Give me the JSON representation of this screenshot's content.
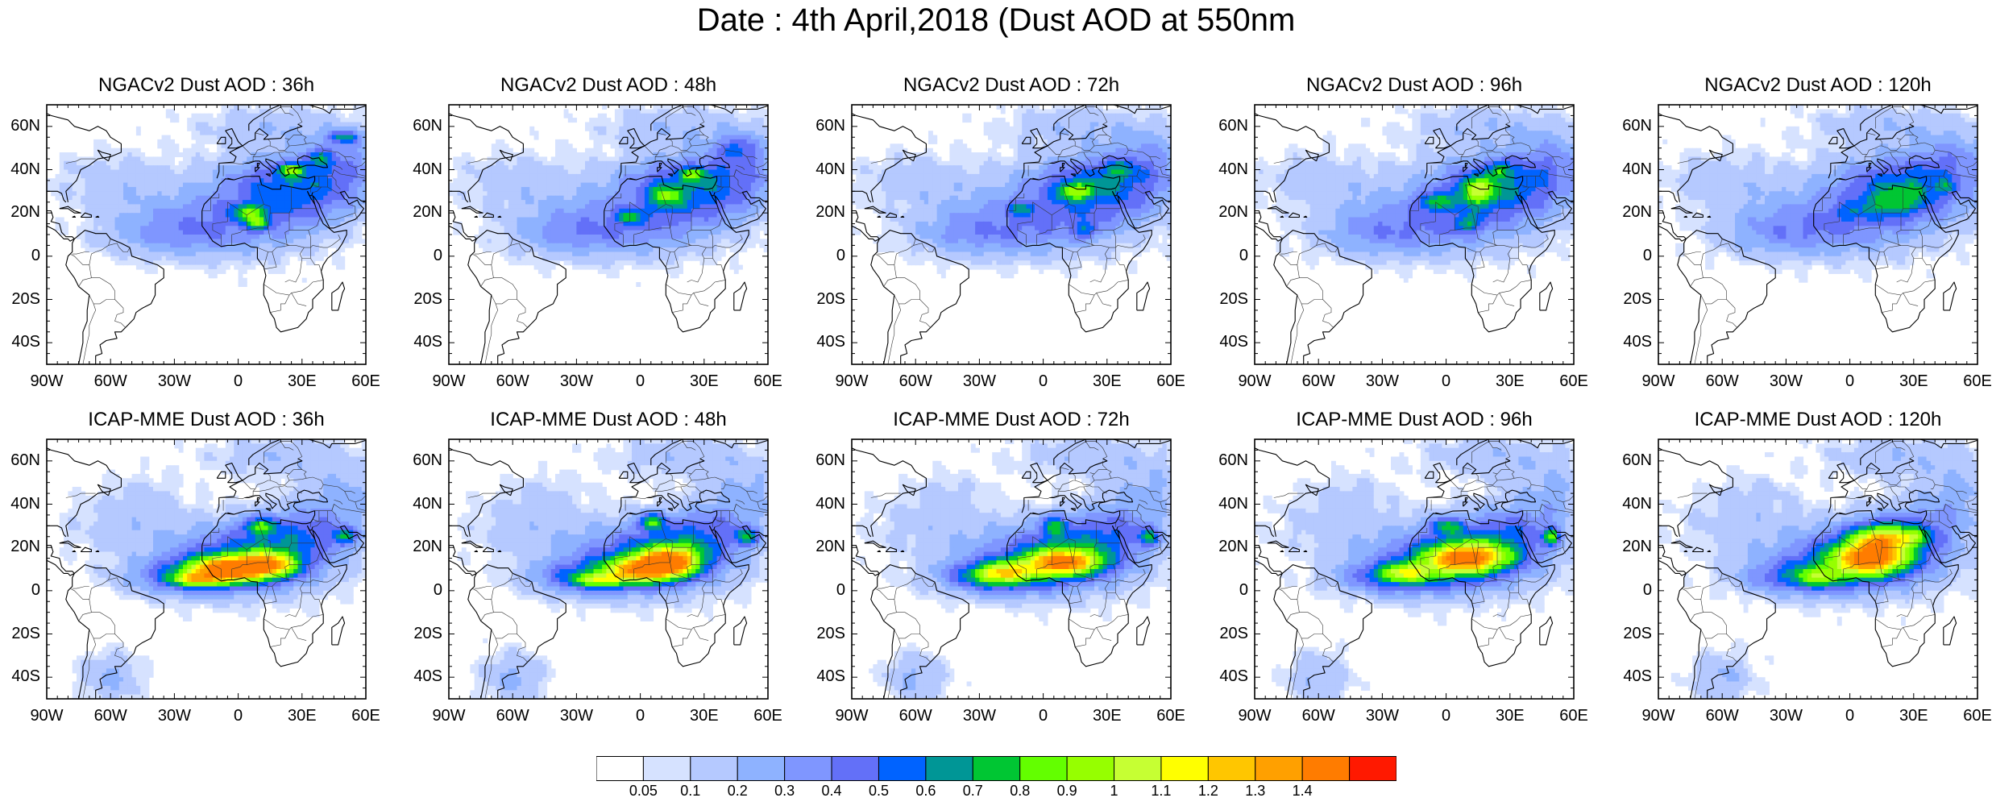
{
  "figure": {
    "title": "Date : 4th April,2018 (Dust AOD at 550nm"
  },
  "chart_data": {
    "type": "heatmap",
    "panels": [
      {
        "title": "NGACv2 Dust AOD : 36h",
        "model": "NGACv2",
        "lead": "36h",
        "max_aod": 0.9
      },
      {
        "title": "NGACv2 Dust AOD : 48h",
        "model": "NGACv2",
        "lead": "48h",
        "max_aod": 0.9
      },
      {
        "title": "NGACv2 Dust AOD : 72h",
        "model": "NGACv2",
        "lead": "72h",
        "max_aod": 0.9
      },
      {
        "title": "NGACv2 Dust AOD : 96h",
        "model": "NGACv2",
        "lead": "96h",
        "max_aod": 1.0
      },
      {
        "title": "NGACv2 Dust AOD : 120h",
        "model": "NGACv2",
        "lead": "120h",
        "max_aod": 0.7
      },
      {
        "title": "ICAP-MME Dust AOD : 36h",
        "model": "ICAP-MME",
        "lead": "36h",
        "max_aod": 1.4
      },
      {
        "title": "ICAP-MME Dust AOD : 48h",
        "model": "ICAP-MME",
        "lead": "48h",
        "max_aod": 1.4
      },
      {
        "title": "ICAP-MME Dust AOD : 72h",
        "model": "ICAP-MME",
        "lead": "72h",
        "max_aod": 1.4
      },
      {
        "title": "ICAP-MME Dust AOD : 96h",
        "model": "ICAP-MME",
        "lead": "96h",
        "max_aod": 1.4
      },
      {
        "title": "ICAP-MME Dust AOD : 120h",
        "model": "ICAP-MME",
        "lead": "120h",
        "max_aod": 1.4
      }
    ],
    "x_ticks": [
      {
        "value": -90,
        "label": "90W"
      },
      {
        "value": -60,
        "label": "60W"
      },
      {
        "value": -30,
        "label": "30W"
      },
      {
        "value": 0,
        "label": "0"
      },
      {
        "value": 30,
        "label": "30E"
      },
      {
        "value": 60,
        "label": "60E"
      }
    ],
    "y_ticks": [
      {
        "value": 60,
        "label": "60N"
      },
      {
        "value": 40,
        "label": "40N"
      },
      {
        "value": 20,
        "label": "20N"
      },
      {
        "value": 0,
        "label": "0"
      },
      {
        "value": -20,
        "label": "20S"
      },
      {
        "value": -40,
        "label": "40S"
      }
    ],
    "xlim": [
      -90,
      60
    ],
    "ylim": [
      -50,
      70
    ],
    "colorbar": {
      "levels": [
        "0.05",
        "0.1",
        "0.2",
        "0.3",
        "0.4",
        "0.5",
        "0.6",
        "0.7",
        "0.8",
        "0.9",
        "1",
        "1.1",
        "1.2",
        "1.3",
        "1.4"
      ],
      "colors": [
        "#ffffff",
        "#d6e2ff",
        "#b5c9ff",
        "#8eb2ff",
        "#7f96ff",
        "#6370f8",
        "#0063ff",
        "#009696",
        "#00c633",
        "#63ff00",
        "#96ff00",
        "#c6ff33",
        "#ffff00",
        "#ffc600",
        "#ffa000",
        "#ff7c00",
        "#ff1900"
      ]
    }
  }
}
